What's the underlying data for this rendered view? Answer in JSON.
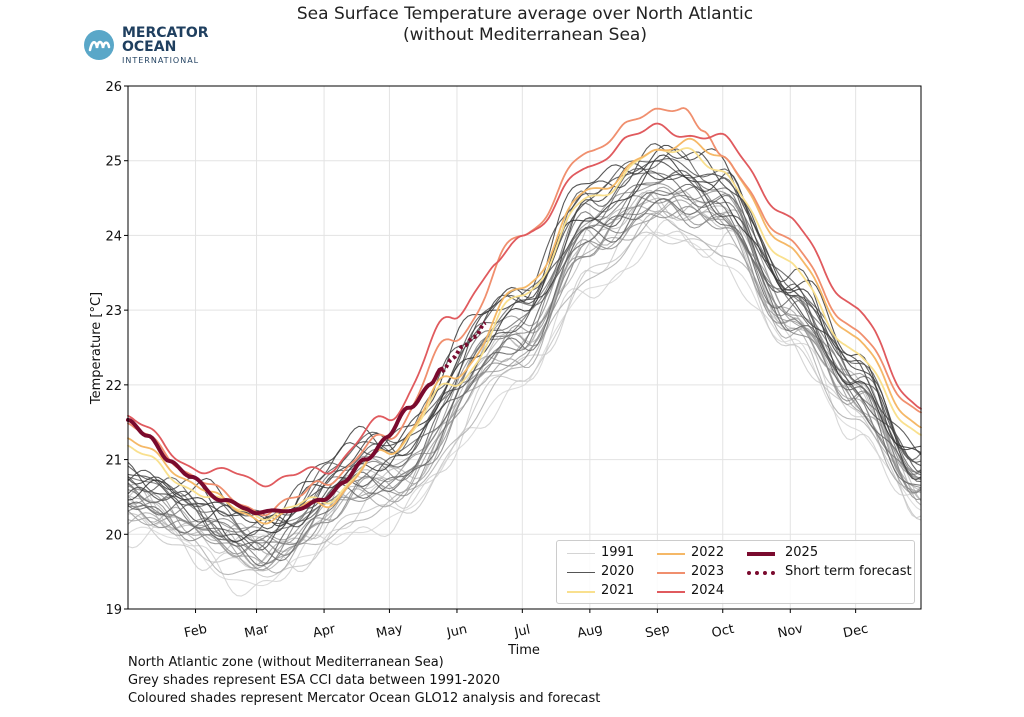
{
  "title_line1": "Sea Surface Temperature average over North Atlantic",
  "title_line2": "(without Mediterranean Sea)",
  "logo": {
    "line1": "MERCATOR",
    "line2": "OCEAN",
    "line3": "INTERNATIONAL",
    "color": "#1f3f5f",
    "mark_color": "#5aa7c8"
  },
  "notes": [
    "North Atlantic zone (without Mediterranean Sea)",
    "Grey shades represent ESA CCI data between 1991-2020",
    "Coloured shades represent Mercator Ocean GLO12 analysis and forecast"
  ],
  "legend": [
    {
      "label": "1991",
      "color": "#d4d4d4",
      "style": "solid"
    },
    {
      "label": "2020",
      "color": "#555555",
      "style": "solid"
    },
    {
      "label": "2021",
      "color": "#f9e08e",
      "style": "solid"
    },
    {
      "label": "2022",
      "color": "#f5b867",
      "style": "solid"
    },
    {
      "label": "2023",
      "color": "#f08f6e",
      "style": "solid"
    },
    {
      "label": "2024",
      "color": "#e05a5e",
      "style": "solid"
    },
    {
      "label": "2025",
      "color": "#7a0a2e",
      "style": "bold"
    },
    {
      "label": "Short term forecast",
      "color": "#7a0a2e",
      "style": "dotted"
    }
  ],
  "chart_data": {
    "type": "line",
    "title": "Sea Surface Temperature average over North Atlantic (without Mediterranean Sea)",
    "xlabel": "Time",
    "ylabel": "Temperature [°C]",
    "ylim": [
      19,
      26
    ],
    "xlim_day_of_year": [
      1,
      365
    ],
    "yticks": [
      19,
      20,
      21,
      22,
      23,
      24,
      25,
      26
    ],
    "month_ticks": [
      {
        "label": "Feb",
        "day": 32
      },
      {
        "label": "Mar",
        "day": 60
      },
      {
        "label": "Apr",
        "day": 91
      },
      {
        "label": "May",
        "day": 121
      },
      {
        "label": "Jun",
        "day": 152
      },
      {
        "label": "Jul",
        "day": 182
      },
      {
        "label": "Aug",
        "day": 213
      },
      {
        "label": "Sep",
        "day": 244
      },
      {
        "label": "Oct",
        "day": 274
      },
      {
        "label": "Nov",
        "day": 305
      },
      {
        "label": "Dec",
        "day": 335
      }
    ],
    "grid": true,
    "legend_position": "lower-right",
    "climatology_years": [
      1991,
      2020
    ],
    "climatology_anchors": {
      "day": [
        1,
        60,
        120,
        182,
        213,
        244,
        274,
        305,
        335,
        365
      ],
      "temp": [
        20.5,
        19.85,
        20.8,
        22.7,
        24.0,
        24.6,
        24.3,
        23.0,
        21.9,
        20.7
      ]
    },
    "series": [
      {
        "name": "2021",
        "color": "#f9e08e",
        "x": [
          1,
          30,
          60,
          90,
          120,
          150,
          182,
          213,
          244,
          255,
          274,
          305,
          335,
          365
        ],
        "y": [
          21.2,
          20.6,
          20.25,
          20.45,
          21.1,
          22.0,
          23.2,
          24.5,
          25.1,
          25.2,
          24.8,
          23.6,
          22.4,
          21.3
        ]
      },
      {
        "name": "2022",
        "color": "#f5b867",
        "x": [
          1,
          30,
          60,
          90,
          120,
          150,
          182,
          213,
          244,
          257,
          274,
          305,
          335,
          365
        ],
        "y": [
          21.3,
          20.7,
          20.2,
          20.4,
          21.1,
          22.1,
          23.3,
          24.6,
          25.1,
          25.3,
          25.0,
          23.8,
          22.6,
          21.4
        ]
      },
      {
        "name": "2023",
        "color": "#f08f6e",
        "x": [
          1,
          30,
          60,
          80,
          90,
          120,
          150,
          182,
          213,
          230,
          244,
          255,
          265,
          274,
          305,
          335,
          365
        ],
        "y": [
          21.5,
          20.8,
          20.3,
          20.5,
          20.7,
          21.3,
          22.6,
          24.0,
          25.1,
          25.5,
          25.65,
          25.75,
          25.4,
          25.0,
          23.9,
          22.7,
          21.6
        ]
      },
      {
        "name": "2024",
        "color": "#e05a5e",
        "x": [
          1,
          30,
          45,
          60,
          90,
          120,
          150,
          170,
          182,
          213,
          230,
          244,
          265,
          274,
          305,
          335,
          365
        ],
        "y": [
          21.6,
          20.9,
          20.85,
          20.7,
          20.85,
          21.55,
          22.9,
          23.6,
          24.0,
          24.9,
          25.3,
          25.45,
          25.3,
          25.3,
          24.2,
          23.0,
          21.65
        ]
      },
      {
        "name": "2025",
        "color": "#7a0a2e",
        "x": [
          1,
          10,
          20,
          30,
          45,
          55,
          60,
          70,
          80,
          90,
          100,
          110,
          120,
          130,
          140,
          145
        ],
        "y": [
          21.55,
          21.3,
          21.0,
          20.75,
          20.45,
          20.35,
          20.3,
          20.3,
          20.35,
          20.45,
          20.7,
          21.0,
          21.3,
          21.7,
          22.0,
          22.2
        ]
      },
      {
        "name": "Short term forecast",
        "color": "#7a0a2e",
        "x": [
          145,
          150,
          155,
          160,
          165
        ],
        "y": [
          22.2,
          22.35,
          22.5,
          22.65,
          22.85
        ]
      }
    ]
  }
}
